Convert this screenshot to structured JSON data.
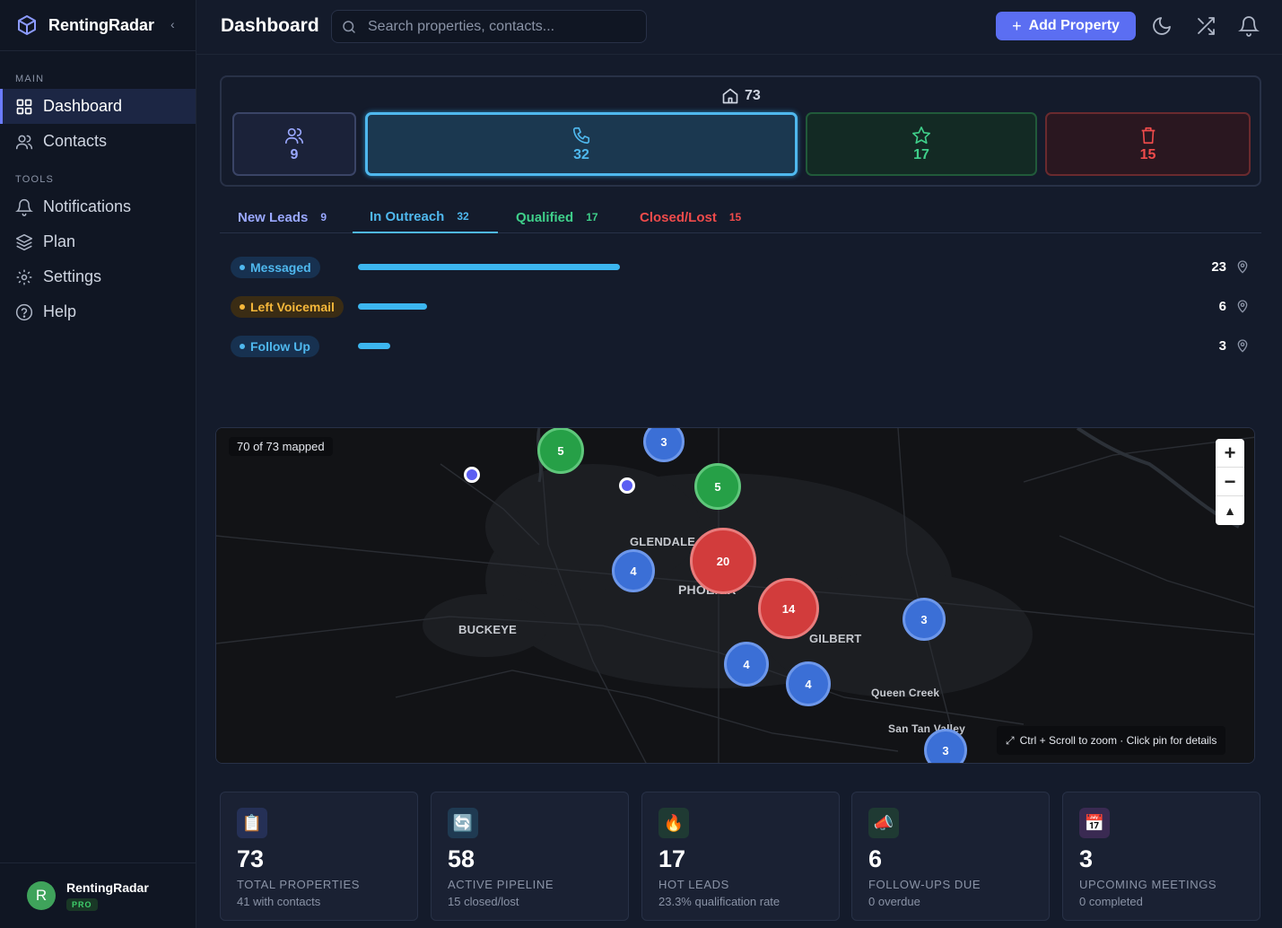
{
  "app": {
    "name": "RentingRadar"
  },
  "sidebar": {
    "sections": [
      {
        "label": "MAIN",
        "items": [
          {
            "label": "Dashboard",
            "icon": "grid-icon",
            "active": true
          },
          {
            "label": "Contacts",
            "icon": "users-icon"
          }
        ]
      },
      {
        "label": "TOOLS",
        "items": [
          {
            "label": "Notifications",
            "icon": "bell-icon"
          },
          {
            "label": "Plan",
            "icon": "layers-icon"
          },
          {
            "label": "Settings",
            "icon": "gear-icon"
          },
          {
            "label": "Help",
            "icon": "help-icon"
          }
        ]
      }
    ]
  },
  "user": {
    "initial": "R",
    "name": "RentingRadar",
    "plan": "PRO"
  },
  "header": {
    "title": "Dashboard",
    "search_placeholder": "Search properties, contacts...",
    "add_label": "Add Property"
  },
  "summary": {
    "total": "73",
    "stages": [
      {
        "key": "new",
        "value": "9",
        "color": "#9aa8ff",
        "icon": "users-icon"
      },
      {
        "key": "outreach",
        "value": "32",
        "color": "#4fb8ee",
        "icon": "phone-icon"
      },
      {
        "key": "qualified",
        "value": "17",
        "color": "#3fcf8a",
        "icon": "star-icon"
      },
      {
        "key": "closed",
        "value": "15",
        "color": "#ef4b4b",
        "icon": "trash-icon"
      }
    ]
  },
  "tabs": [
    {
      "label": "New Leads",
      "count": "9",
      "color": "#9aa8ff"
    },
    {
      "label": "In Outreach",
      "count": "32",
      "color": "#4fb8ee",
      "active": true
    },
    {
      "label": "Qualified",
      "count": "17",
      "color": "#3fcf8a"
    },
    {
      "label": "Closed/Lost",
      "count": "15",
      "color": "#ef4b4b"
    }
  ],
  "outreach_rows": [
    {
      "label": "Messaged",
      "count": "23",
      "fraction": 0.72,
      "pill_bg": "#173150",
      "pill_fg": "#4fb8ee"
    },
    {
      "label": "Left Voicemail",
      "count": "6",
      "fraction": 0.19,
      "pill_bg": "#3a2c14",
      "pill_fg": "#f5b73a"
    },
    {
      "label": "Follow Up",
      "count": "3",
      "fraction": 0.09,
      "pill_bg": "#173150",
      "pill_fg": "#4fb8ee"
    }
  ],
  "map": {
    "mapped_label": "70 of 73 mapped",
    "cities": [
      "GLENDALE",
      "PHOENIX",
      "BUCKEYE",
      "GILBERT",
      "Queen Creek",
      "San Tan Valley"
    ],
    "clusters": [
      "5",
      "3",
      "5",
      "4",
      "20",
      "14",
      "3",
      "4",
      "4",
      "3"
    ],
    "hint": "Ctrl + Scroll to zoom · Click pin for details"
  },
  "stats": [
    {
      "value": "73",
      "label": "TOTAL PROPERTIES",
      "sub": "41 with contacts",
      "icon": "clipboard-icon"
    },
    {
      "value": "58",
      "label": "ACTIVE PIPELINE",
      "sub": "15 closed/lost",
      "icon": "cycle-icon"
    },
    {
      "value": "17",
      "label": "HOT LEADS",
      "sub": "23.3% qualification rate",
      "icon": "fire-icon"
    },
    {
      "value": "6",
      "label": "FOLLOW-UPS DUE",
      "sub": "0 overdue",
      "icon": "megaphone-icon"
    },
    {
      "value": "3",
      "label": "UPCOMING MEETINGS",
      "sub": "0 completed",
      "icon": "calendar-icon"
    }
  ]
}
